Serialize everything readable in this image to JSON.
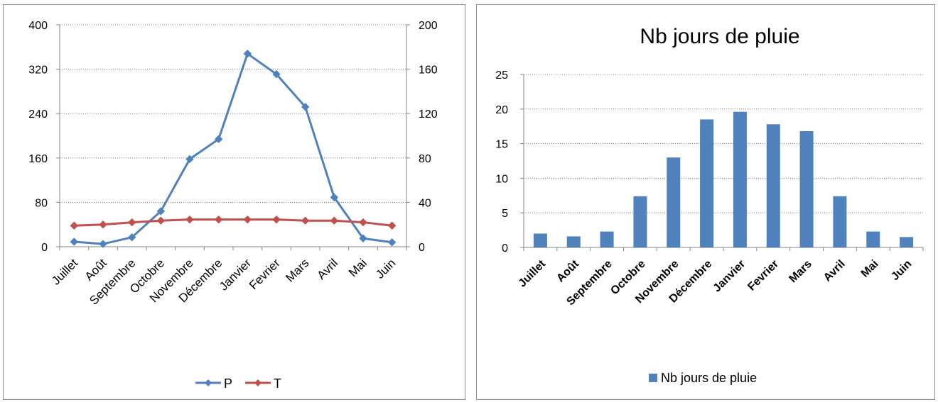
{
  "chart_data": [
    {
      "type": "line",
      "categories": [
        "Juillet",
        "Août",
        "Septembre",
        "Octobre",
        "Novembre",
        "Décembre",
        "Janvier",
        "Fevrier",
        "Mars",
        "Avril",
        "Mai",
        "Juin"
      ],
      "series": [
        {
          "name": "P",
          "axis": "left",
          "color": "#4f81bd",
          "values": [
            9,
            5,
            17,
            64,
            158,
            194,
            348,
            311,
            252,
            89,
            15,
            8
          ]
        },
        {
          "name": "T",
          "axis": "right",
          "color": "#c0504d",
          "values": [
            19,
            20,
            22,
            23.5,
            24.5,
            24.5,
            24.5,
            24.5,
            23.5,
            23.5,
            22,
            19
          ]
        }
      ],
      "ylim_left": [
        0,
        400
      ],
      "ylim_right": [
        0,
        200
      ],
      "yticks_left": [
        "0",
        "80",
        "160",
        "240",
        "320",
        "400"
      ],
      "yticks_right": [
        "0",
        "40",
        "80",
        "120",
        "160",
        "200"
      ],
      "grid": "horizontal-dotted",
      "legend_position": "bottom"
    },
    {
      "type": "bar",
      "title": "Nb jours de pluie",
      "categories": [
        "Juillet",
        "Août",
        "Septembre",
        "Octobre",
        "Novembre",
        "Décembre",
        "Janvier",
        "Fevrier",
        "Mars",
        "Avril",
        "Mai",
        "Juin"
      ],
      "series": [
        {
          "name": "Nb jours de pluie",
          "color": "#4f81bd",
          "values": [
            2,
            1.6,
            2.3,
            7.4,
            13,
            18.5,
            19.6,
            17.8,
            16.8,
            7.4,
            2.3,
            1.5
          ]
        }
      ],
      "ylim": [
        0,
        25
      ],
      "yticks": [
        "0",
        "5",
        "10",
        "15",
        "20",
        "25"
      ],
      "grid": "horizontal-dotted",
      "legend_position": "bottom"
    }
  ]
}
